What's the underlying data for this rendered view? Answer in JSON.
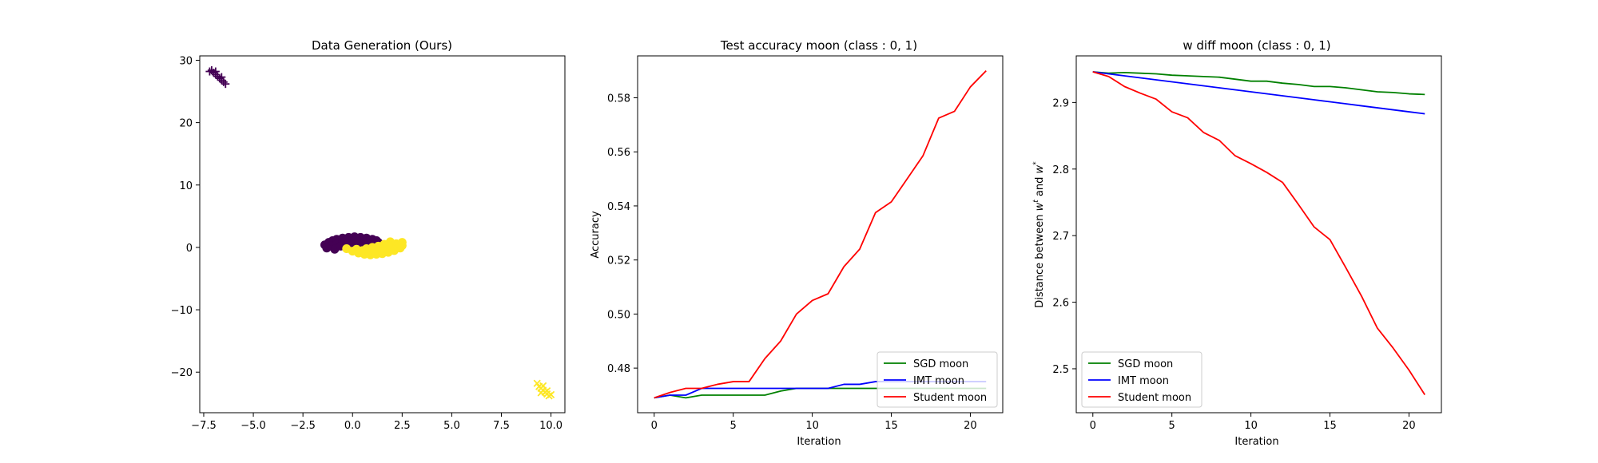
{
  "chart_data": [
    {
      "type": "scatter",
      "title": "Data Generation (Ours)",
      "xlabel": "",
      "ylabel": "",
      "xlim": [
        -7.7,
        10.7
      ],
      "ylim": [
        -26.5,
        30.7
      ],
      "xticks": [
        -7.5,
        -5.0,
        -2.5,
        0.0,
        2.5,
        5.0,
        7.5,
        10.0
      ],
      "xtick_labels": [
        "−7.5",
        "−5.0",
        "−2.5",
        "0.0",
        "2.5",
        "5.0",
        "7.5",
        "10.0"
      ],
      "yticks": [
        -20,
        -10,
        0,
        10,
        20,
        30
      ],
      "ytick_labels": [
        "−20",
        "−10",
        "0",
        "10",
        "20",
        "30"
      ],
      "grid": false,
      "series": [
        {
          "color": "#440154",
          "marker": "circle",
          "points": [
            [
              -1.4,
              0.4
            ],
            [
              -1.2,
              0.8
            ],
            [
              -1.0,
              1.1
            ],
            [
              -0.8,
              1.3
            ],
            [
              -0.5,
              1.5
            ],
            [
              -0.2,
              1.6
            ],
            [
              0.1,
              1.7
            ],
            [
              0.4,
              1.6
            ],
            [
              0.7,
              1.5
            ],
            [
              1.0,
              1.3
            ],
            [
              1.2,
              1.1
            ],
            [
              -1.1,
              0.2
            ],
            [
              -0.8,
              0.5
            ],
            [
              -0.5,
              0.8
            ],
            [
              -0.2,
              1.0
            ],
            [
              0.1,
              1.1
            ],
            [
              0.4,
              1.0
            ],
            [
              0.7,
              0.9
            ],
            [
              1.0,
              0.7
            ],
            [
              -0.9,
              -0.3
            ],
            [
              -0.6,
              0.2
            ],
            [
              -0.3,
              0.6
            ],
            [
              0.0,
              0.5
            ],
            [
              0.3,
              0.7
            ],
            [
              0.6,
              0.4
            ],
            [
              1.3,
              0.8
            ],
            [
              -1.3,
              -0.1
            ],
            [
              -0.4,
              1.3
            ],
            [
              0.2,
              1.4
            ],
            [
              0.9,
              1.2
            ]
          ]
        },
        {
          "color": "#fde725",
          "marker": "circle",
          "points": [
            [
              -0.3,
              -0.2
            ],
            [
              0.0,
              -0.6
            ],
            [
              0.3,
              -0.9
            ],
            [
              0.6,
              -1.1
            ],
            [
              0.9,
              -1.2
            ],
            [
              1.2,
              -1.1
            ],
            [
              1.5,
              -1.0
            ],
            [
              1.8,
              -0.8
            ],
            [
              2.1,
              -0.5
            ],
            [
              2.4,
              -0.1
            ],
            [
              2.5,
              0.3
            ],
            [
              2.5,
              0.8
            ],
            [
              0.2,
              -0.3
            ],
            [
              0.5,
              -0.5
            ],
            [
              0.8,
              -0.6
            ],
            [
              1.1,
              -0.5
            ],
            [
              1.4,
              -0.3
            ],
            [
              1.7,
              -0.1
            ],
            [
              2.0,
              0.2
            ],
            [
              2.2,
              0.6
            ],
            [
              1.9,
              0.9
            ],
            [
              1.6,
              0.5
            ],
            [
              1.3,
              0.2
            ],
            [
              1.0,
              0.0
            ],
            [
              0.7,
              -0.2
            ],
            [
              2.3,
              0.0
            ],
            [
              1.8,
              0.4
            ],
            [
              1.5,
              -0.6
            ],
            [
              0.4,
              -0.8
            ],
            [
              2.4,
              0.5
            ]
          ]
        },
        {
          "color": "#440154",
          "marker": "plus",
          "points": [
            [
              -7.1,
              28.4
            ],
            [
              -7.0,
              28.0
            ],
            [
              -6.9,
              27.7
            ],
            [
              -6.8,
              27.4
            ],
            [
              -6.7,
              27.1
            ],
            [
              -6.6,
              26.8
            ],
            [
              -6.5,
              26.5
            ],
            [
              -6.4,
              26.2
            ],
            [
              -6.9,
              28.2
            ],
            [
              -6.6,
              27.3
            ],
            [
              -7.2,
              28.2
            ]
          ]
        },
        {
          "color": "#fde725",
          "marker": "x",
          "points": [
            [
              9.3,
              -21.8
            ],
            [
              9.4,
              -22.3
            ],
            [
              9.5,
              -22.6
            ],
            [
              9.6,
              -22.9
            ],
            [
              9.7,
              -23.2
            ],
            [
              9.8,
              -23.5
            ],
            [
              9.9,
              -23.8
            ],
            [
              9.6,
              -22.2
            ],
            [
              9.8,
              -23.0
            ],
            [
              9.5,
              -23.3
            ],
            [
              10.0,
              -23.6
            ]
          ]
        }
      ]
    },
    {
      "type": "line",
      "title": "Test accuracy moon (class : 0, 1)",
      "xlabel": "Iteration",
      "ylabel": "Accuracy",
      "xlim": [
        -1.05,
        22.05
      ],
      "ylim": [
        0.4635,
        0.5955
      ],
      "xticks": [
        0,
        5,
        10,
        15,
        20
      ],
      "xtick_labels": [
        "0",
        "5",
        "10",
        "15",
        "20"
      ],
      "yticks": [
        0.48,
        0.5,
        0.52,
        0.54,
        0.56,
        0.58
      ],
      "ytick_labels": [
        "0.48",
        "0.50",
        "0.52",
        "0.54",
        "0.56",
        "0.58"
      ],
      "grid": false,
      "legend": "lower-right",
      "x": [
        0,
        1,
        2,
        3,
        4,
        5,
        6,
        7,
        8,
        9,
        10,
        11,
        12,
        13,
        14,
        15,
        16,
        17,
        18,
        19,
        20,
        21
      ],
      "series": [
        {
          "name": "SGD moon",
          "color": "#008000",
          "values": [
            0.469,
            0.47,
            0.469,
            0.47,
            0.47,
            0.47,
            0.47,
            0.47,
            0.4715,
            0.4725,
            0.4725,
            0.4725,
            0.4725,
            0.4725,
            0.4725,
            0.4725,
            0.4725,
            0.4725,
            0.4725,
            0.4725,
            0.4725,
            0.4725
          ]
        },
        {
          "name": "IMT moon",
          "color": "#0000ff",
          "values": [
            0.469,
            0.47,
            0.47,
            0.4725,
            0.4725,
            0.4725,
            0.4725,
            0.4725,
            0.4725,
            0.4725,
            0.4725,
            0.4725,
            0.474,
            0.474,
            0.475,
            0.475,
            0.475,
            0.475,
            0.475,
            0.475,
            0.475,
            0.475
          ]
        },
        {
          "name": "Student moon",
          "color": "#ff0000",
          "values": [
            0.469,
            0.471,
            0.4725,
            0.4725,
            0.474,
            0.475,
            0.475,
            0.4835,
            0.49,
            0.5,
            0.505,
            0.5075,
            0.5175,
            0.524,
            0.5375,
            0.5415,
            0.55,
            0.5585,
            0.5725,
            0.575,
            0.584,
            0.59
          ]
        }
      ]
    },
    {
      "type": "line",
      "title": "w diff moon (class : 0, 1)",
      "xlabel": "Iteration",
      "ylabel_main": "Distance between ",
      "ylabel_w": "w",
      "ylabel_t": "t",
      "ylabel_and": " and ",
      "ylabel_star": "*",
      "xlim": [
        -1.05,
        22.05
      ],
      "ylim": [
        2.434,
        2.97
      ],
      "xticks": [
        0,
        5,
        10,
        15,
        20
      ],
      "xtick_labels": [
        "0",
        "5",
        "10",
        "15",
        "20"
      ],
      "yticks": [
        2.5,
        2.6,
        2.7,
        2.8,
        2.9
      ],
      "ytick_labels": [
        "2.5",
        "2.6",
        "2.7",
        "2.8",
        "2.9"
      ],
      "grid": false,
      "legend": "lower-left",
      "x": [
        0,
        1,
        2,
        3,
        4,
        5,
        6,
        7,
        8,
        9,
        10,
        11,
        12,
        13,
        14,
        15,
        16,
        17,
        18,
        19,
        20,
        21
      ],
      "series": [
        {
          "name": "SGD moon",
          "color": "#008000",
          "values": [
            2.946,
            2.944,
            2.945,
            2.944,
            2.943,
            2.941,
            2.94,
            2.939,
            2.938,
            2.935,
            2.932,
            2.932,
            2.929,
            2.927,
            2.924,
            2.924,
            2.922,
            2.919,
            2.916,
            2.915,
            2.913,
            2.912
          ]
        },
        {
          "name": "IMT moon",
          "color": "#0000ff",
          "values": [
            2.946,
            2.943,
            2.94,
            2.937,
            2.934,
            2.931,
            2.928,
            2.925,
            2.922,
            2.919,
            2.916,
            2.913,
            2.91,
            2.907,
            2.904,
            2.901,
            2.898,
            2.895,
            2.892,
            2.889,
            2.886,
            2.883
          ]
        },
        {
          "name": "Student moon",
          "color": "#ff0000",
          "values": [
            2.946,
            2.939,
            2.924,
            2.914,
            2.905,
            2.886,
            2.877,
            2.855,
            2.843,
            2.82,
            2.808,
            2.795,
            2.78,
            2.747,
            2.713,
            2.694,
            2.652,
            2.609,
            2.561,
            2.531,
            2.498,
            2.461
          ]
        }
      ]
    }
  ]
}
